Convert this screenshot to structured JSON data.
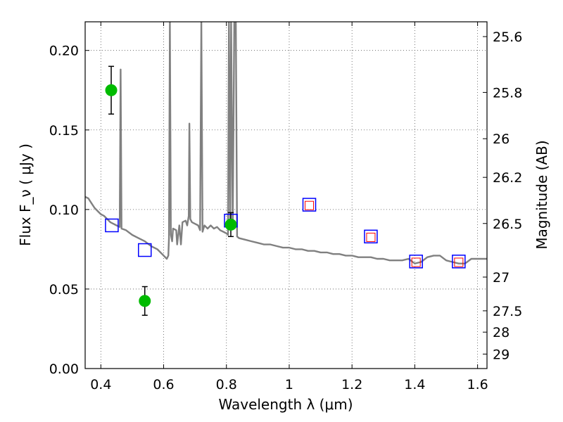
{
  "chart_data": {
    "type": "scatter",
    "xlabel": "Wavelength  λ (μm)",
    "ylabel": "Flux  F_ν  ( μJy )",
    "ylabel_right": "Magnitude (AB)",
    "xlim": [
      0.35,
      1.63
    ],
    "ylim": [
      0.0,
      0.218
    ],
    "grid": true,
    "x_ticks": [
      0.4,
      0.6,
      0.8,
      1.0,
      1.2,
      1.4,
      1.6
    ],
    "x_tick_labels": [
      "0.4",
      "0.6",
      "0.8",
      "1",
      "1.2",
      "1.4",
      "1.6"
    ],
    "y_ticks": [
      0.0,
      0.05,
      0.1,
      0.15,
      0.2
    ],
    "y_tick_labels": [
      "0.00",
      "0.05",
      "0.10",
      "0.15",
      "0.20"
    ],
    "right_axis_ticks": [
      {
        "flux": 0.2087,
        "label": "25.6"
      },
      {
        "flux": 0.1736,
        "label": "25.8"
      },
      {
        "flux": 0.1445,
        "label": "26"
      },
      {
        "flux": 0.1202,
        "label": "26.2"
      },
      {
        "flux": 0.0912,
        "label": "26.5"
      },
      {
        "flux": 0.0575,
        "label": "27"
      },
      {
        "flux": 0.0363,
        "label": "27.5"
      },
      {
        "flux": 0.0229,
        "label": "28"
      },
      {
        "flux": 0.0091,
        "label": "29"
      }
    ],
    "series": [
      {
        "kind": "model_sed",
        "color": "#808080",
        "points": [
          [
            0.35,
            0.108
          ],
          [
            0.36,
            0.107
          ],
          [
            0.37,
            0.104
          ],
          [
            0.38,
            0.101
          ],
          [
            0.39,
            0.099
          ],
          [
            0.4,
            0.097
          ],
          [
            0.41,
            0.096
          ],
          [
            0.42,
            0.094
          ],
          [
            0.43,
            0.092
          ],
          [
            0.44,
            0.091
          ],
          [
            0.45,
            0.09
          ],
          [
            0.46,
            0.089
          ],
          [
            0.463,
            0.188
          ],
          [
            0.466,
            0.088
          ],
          [
            0.48,
            0.087
          ],
          [
            0.5,
            0.084
          ],
          [
            0.52,
            0.082
          ],
          [
            0.54,
            0.08
          ],
          [
            0.56,
            0.077
          ],
          [
            0.58,
            0.075
          ],
          [
            0.6,
            0.071
          ],
          [
            0.61,
            0.069
          ],
          [
            0.615,
            0.071
          ],
          [
            0.617,
            0.082
          ],
          [
            0.62,
            0.218
          ],
          [
            0.623,
            0.084
          ],
          [
            0.627,
            0.08
          ],
          [
            0.63,
            0.088
          ],
          [
            0.64,
            0.087
          ],
          [
            0.643,
            0.078
          ],
          [
            0.65,
            0.09
          ],
          [
            0.655,
            0.078
          ],
          [
            0.66,
            0.092
          ],
          [
            0.67,
            0.093
          ],
          [
            0.675,
            0.09
          ],
          [
            0.68,
            0.096
          ],
          [
            0.682,
            0.154
          ],
          [
            0.685,
            0.094
          ],
          [
            0.69,
            0.092
          ],
          [
            0.7,
            0.091
          ],
          [
            0.71,
            0.09
          ],
          [
            0.716,
            0.087
          ],
          [
            0.72,
            0.218
          ],
          [
            0.724,
            0.086
          ],
          [
            0.73,
            0.09
          ],
          [
            0.74,
            0.088
          ],
          [
            0.75,
            0.09
          ],
          [
            0.76,
            0.088
          ],
          [
            0.77,
            0.089
          ],
          [
            0.78,
            0.087
          ],
          [
            0.79,
            0.086
          ],
          [
            0.8,
            0.085
          ],
          [
            0.805,
            0.084
          ],
          [
            0.808,
            0.218
          ],
          [
            0.812,
            0.09
          ],
          [
            0.815,
            0.218
          ],
          [
            0.82,
            0.088
          ],
          [
            0.825,
            0.218
          ],
          [
            0.83,
            0.218
          ],
          [
            0.834,
            0.083
          ],
          [
            0.84,
            0.082
          ],
          [
            0.86,
            0.081
          ],
          [
            0.88,
            0.08
          ],
          [
            0.9,
            0.079
          ],
          [
            0.92,
            0.078
          ],
          [
            0.94,
            0.078
          ],
          [
            0.96,
            0.077
          ],
          [
            0.98,
            0.076
          ],
          [
            1.0,
            0.076
          ],
          [
            1.02,
            0.075
          ],
          [
            1.04,
            0.075
          ],
          [
            1.06,
            0.074
          ],
          [
            1.08,
            0.074
          ],
          [
            1.1,
            0.073
          ],
          [
            1.12,
            0.073
          ],
          [
            1.14,
            0.072
          ],
          [
            1.16,
            0.072
          ],
          [
            1.18,
            0.071
          ],
          [
            1.2,
            0.071
          ],
          [
            1.22,
            0.07
          ],
          [
            1.24,
            0.07
          ],
          [
            1.26,
            0.07
          ],
          [
            1.28,
            0.069
          ],
          [
            1.3,
            0.069
          ],
          [
            1.32,
            0.068
          ],
          [
            1.34,
            0.068
          ],
          [
            1.36,
            0.068
          ],
          [
            1.38,
            0.069
          ],
          [
            1.4,
            0.066
          ],
          [
            1.42,
            0.067
          ],
          [
            1.44,
            0.07
          ],
          [
            1.46,
            0.071
          ],
          [
            1.48,
            0.071
          ],
          [
            1.5,
            0.068
          ],
          [
            1.52,
            0.067
          ],
          [
            1.54,
            0.066
          ],
          [
            1.56,
            0.066
          ],
          [
            1.58,
            0.069
          ],
          [
            1.6,
            0.069
          ],
          [
            1.63,
            0.069
          ]
        ]
      },
      {
        "kind": "observed",
        "marker": "circle",
        "color": "#00bb00",
        "points": [
          {
            "x": 0.433,
            "y": 0.175,
            "yerr": 0.015
          },
          {
            "x": 0.54,
            "y": 0.0425,
            "yerr": 0.009
          },
          {
            "x": 0.814,
            "y": 0.0905,
            "yerr": 0.0075
          }
        ]
      },
      {
        "kind": "model_photometry",
        "marker": "square",
        "color": "#0000ff",
        "points": [
          {
            "x": 0.435,
            "y": 0.09
          },
          {
            "x": 0.54,
            "y": 0.0745
          },
          {
            "x": 0.814,
            "y": 0.093
          },
          {
            "x": 1.064,
            "y": 0.103
          },
          {
            "x": 1.26,
            "y": 0.083
          },
          {
            "x": 1.404,
            "y": 0.0673
          },
          {
            "x": 1.54,
            "y": 0.0673
          }
        ]
      },
      {
        "kind": "model_photometry_ir",
        "marker": "square",
        "color": "#ff0000",
        "points": [
          {
            "x": 1.064,
            "y": 0.1025
          },
          {
            "x": 1.26,
            "y": 0.0825
          },
          {
            "x": 1.404,
            "y": 0.0668
          },
          {
            "x": 1.54,
            "y": 0.0668
          }
        ]
      }
    ]
  }
}
